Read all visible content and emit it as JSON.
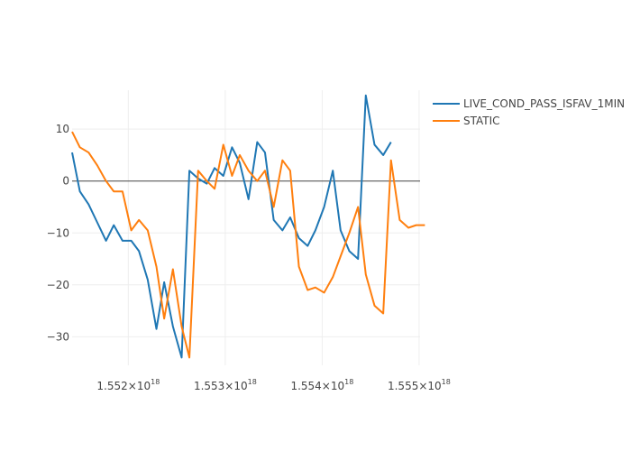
{
  "chart_data": {
    "type": "line",
    "x": [
      1.55142e+18,
      1.5515e+18,
      1.55159e+18,
      1.55168e+18,
      1.55177e+18,
      1.55185e+18,
      1.55194e+18,
      1.55203e+18,
      1.55211e+18,
      1.5522e+18,
      1.55229e+18,
      1.55237e+18,
      1.55246e+18,
      1.55255e+18,
      1.55263e+18,
      1.55272e+18,
      1.55281e+18,
      1.55289e+18,
      1.55298e+18,
      1.55307e+18,
      1.55315e+18,
      1.55324e+18,
      1.55333e+18,
      1.55341e+18,
      1.5535e+18,
      1.55359e+18,
      1.55367e+18,
      1.55376e+18,
      1.55385e+18,
      1.55393e+18,
      1.55402e+18,
      1.55411e+18,
      1.55419e+18,
      1.55428e+18,
      1.55437e+18,
      1.55445e+18,
      1.55454e+18,
      1.55463e+18,
      1.55471e+18,
      1.5548e+18,
      1.55489e+18,
      1.55497e+18,
      1.55506e+18
    ],
    "series": [
      {
        "name": "LIVE_COND_PASS_ISFAV_1MIN",
        "color": "#1f77b4",
        "values": [
          5.5,
          -2.0,
          -4.5,
          -8.0,
          -11.5,
          -8.5,
          -11.5,
          -11.5,
          -13.5,
          -19.0,
          -28.5,
          -19.5,
          -28.0,
          -34.0,
          2.0,
          0.5,
          -0.5,
          2.5,
          1.0,
          6.5,
          3.5,
          -3.5,
          7.5,
          5.5,
          -7.5,
          -9.5,
          -7.0,
          -11.0,
          -12.5,
          -9.5,
          -5.0,
          2.0,
          -9.5,
          -13.5,
          -15.0,
          16.5,
          7.0,
          5.0,
          7.5,
          null,
          null,
          null,
          null
        ]
      },
      {
        "name": "STATIC",
        "color": "#ff7f0e",
        "values": [
          9.5,
          6.5,
          5.5,
          3.0,
          0.0,
          -2.0,
          -2.0,
          -9.5,
          -7.5,
          -9.5,
          -16.5,
          -26.5,
          -17.0,
          -28.0,
          -34.0,
          2.0,
          0.0,
          -1.5,
          7.0,
          1.0,
          5.0,
          2.0,
          0.0,
          2.0,
          -5.0,
          4.0,
          2.0,
          -16.5,
          -21.0,
          -20.5,
          -21.5,
          -18.5,
          -14.5,
          -10.0,
          -5.0,
          -18.0,
          -24.0,
          -25.5,
          4.0,
          -7.5,
          -9.0,
          -8.5,
          -8.5
        ]
      }
    ],
    "xaxis": {
      "range": [
        1.55142e+18,
        1.55501e+18
      ],
      "ticks": [
        1.552e+18,
        1.553e+18,
        1.554e+18,
        1.555e+18
      ],
      "tick_labels": [
        "1.552×10",
        "1.553×10",
        "1.554×10",
        "1.555×10"
      ],
      "tick_exponent": "18"
    },
    "yaxis": {
      "range": [
        -35.5,
        17.5
      ],
      "ticks": [
        10,
        0,
        -10,
        -20,
        -30
      ],
      "tick_labels": [
        "10",
        "0",
        "−10",
        "−20",
        "−30"
      ]
    },
    "grid": true,
    "zero_line": true,
    "legend": "top-right",
    "title": "",
    "xlabel": "",
    "ylabel": ""
  }
}
